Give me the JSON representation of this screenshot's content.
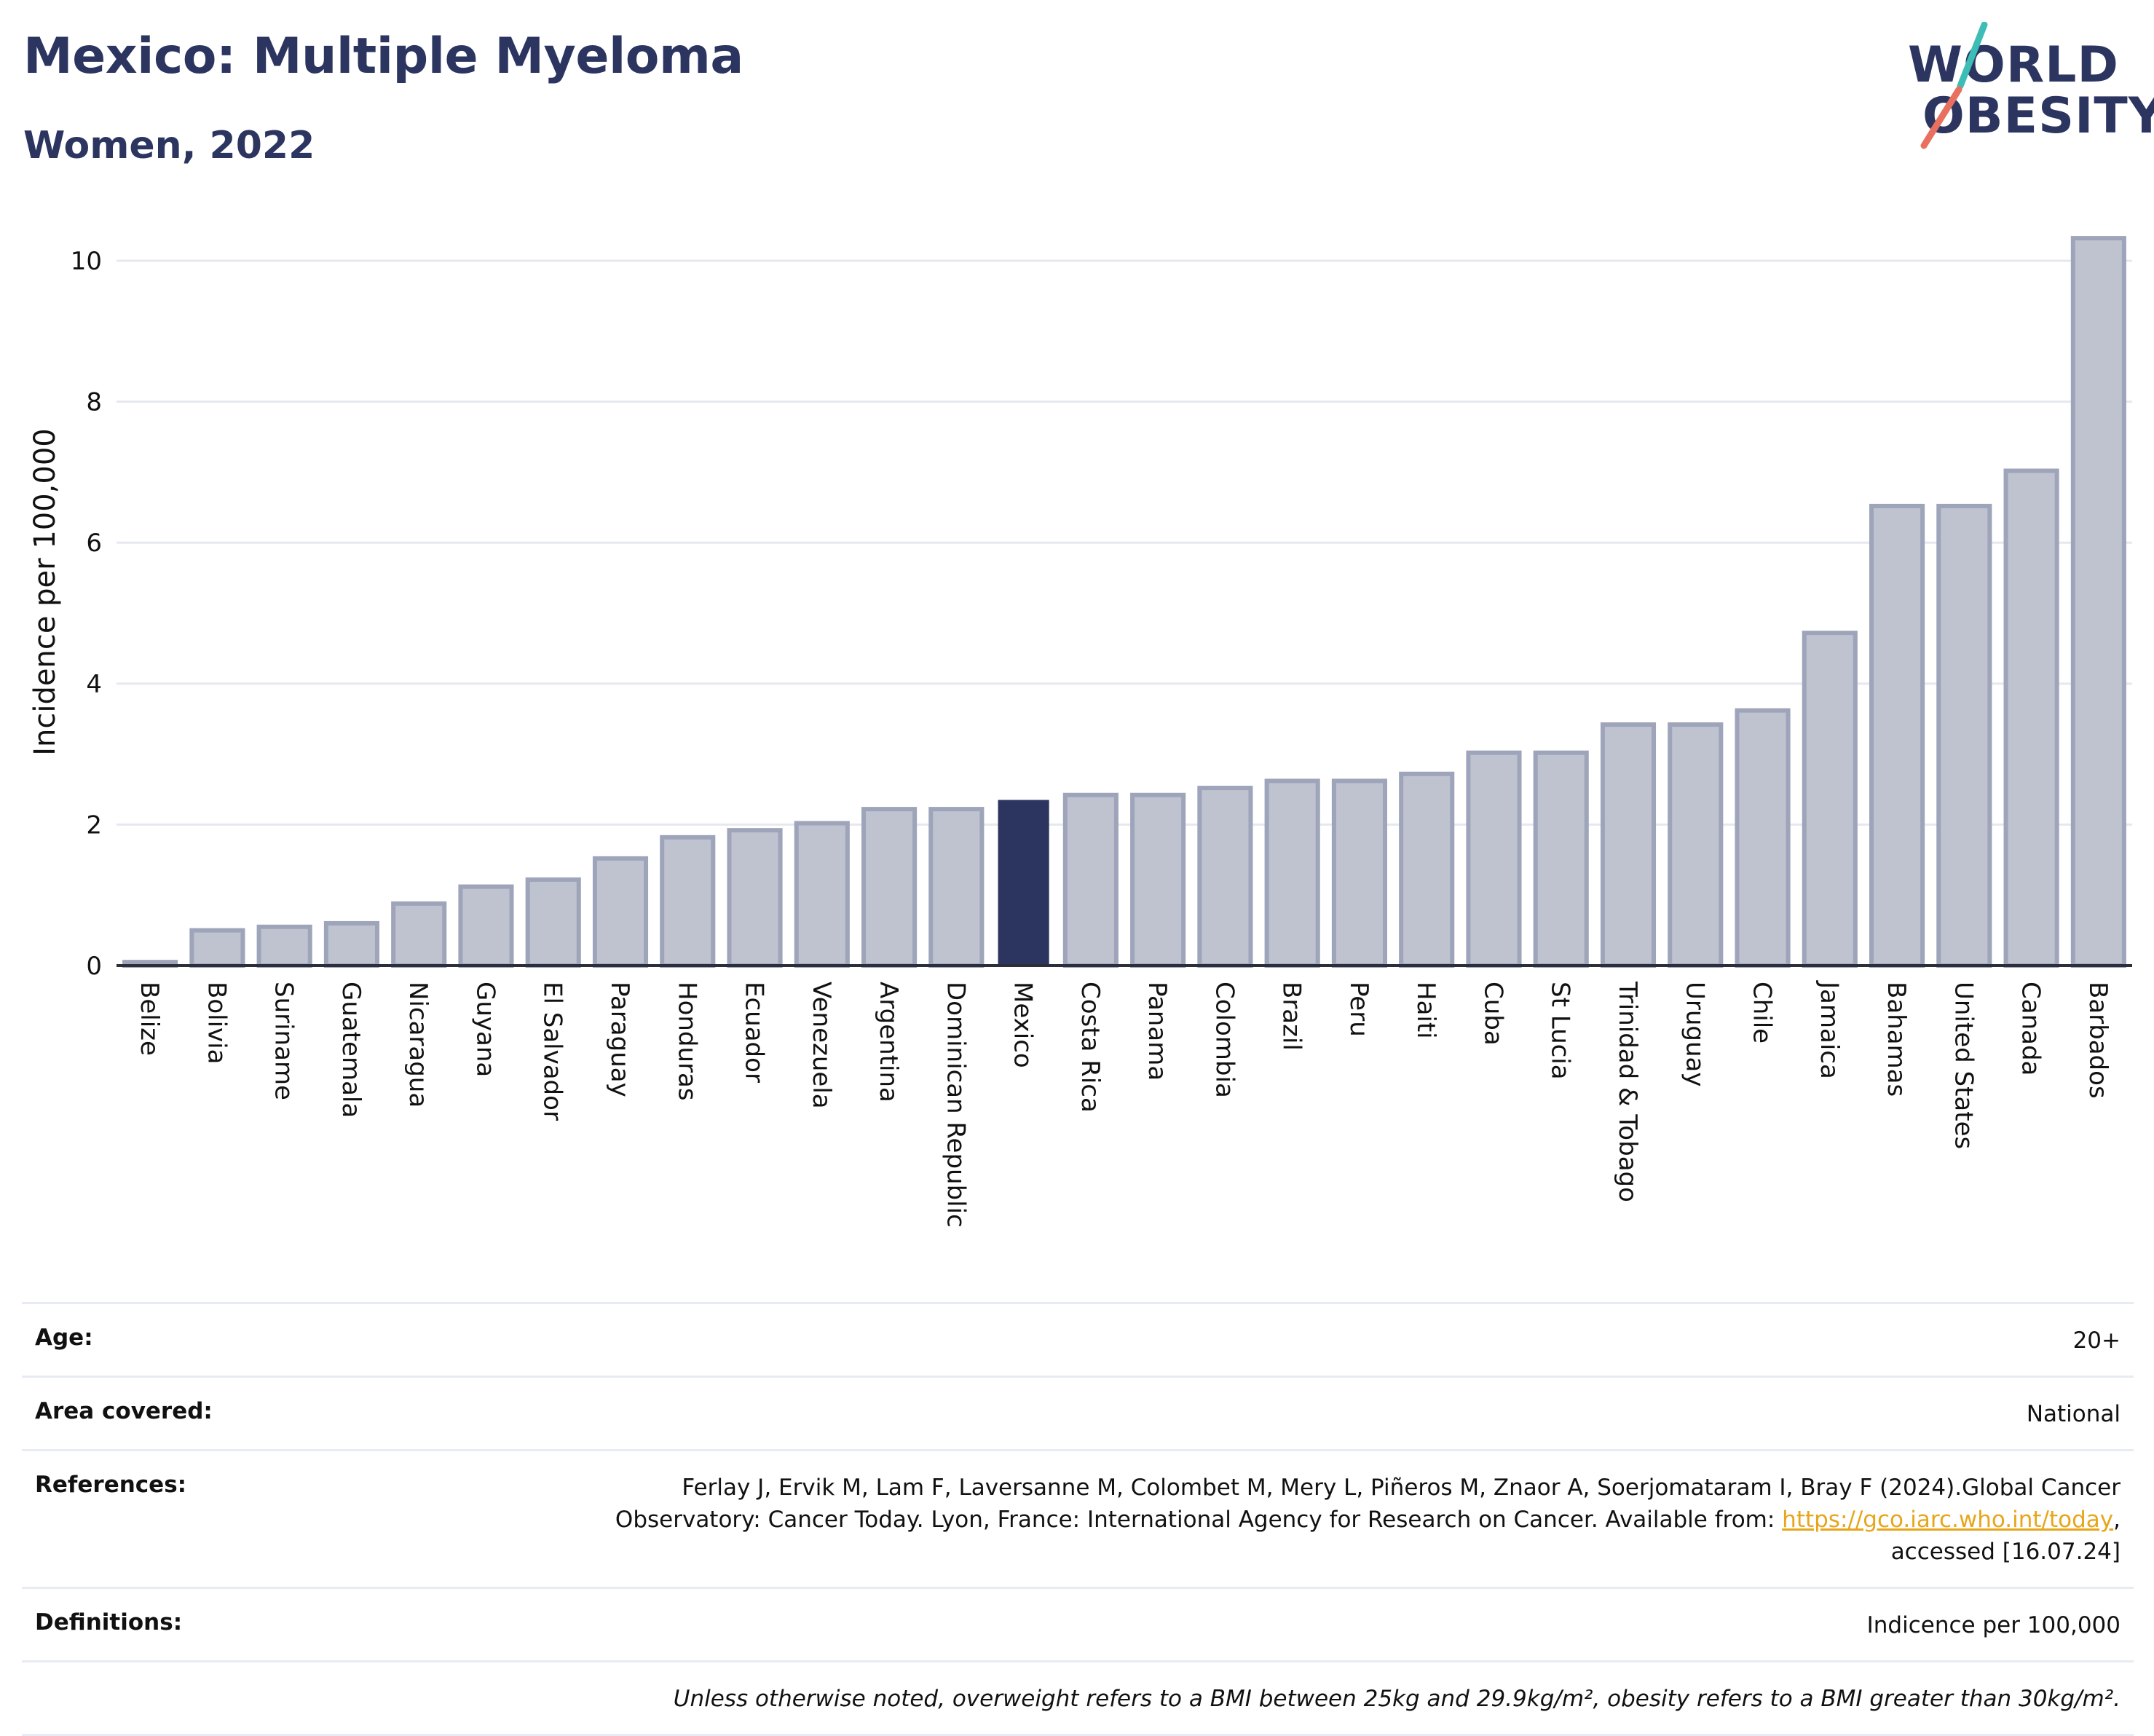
{
  "header": {
    "title": "Mexico: Multiple Myeloma",
    "subtitle": "Women, 2022",
    "logo_line1": "WORLD",
    "logo_line2": "OBESITY"
  },
  "colors": {
    "highlight": "#2b3560",
    "bar_fill": "#bfc3d0",
    "bar_stroke": "#9ea4b9",
    "logo_teal": "#3dbdb5",
    "logo_coral": "#e7705f"
  },
  "chart_data": {
    "type": "bar",
    "ylabel": "Incidence per 100,000",
    "xlabel": "",
    "ylim": [
      0,
      10.6
    ],
    "yticks": [
      0,
      2,
      4,
      6,
      8,
      10
    ],
    "grid": true,
    "highlight": "Mexico",
    "categories": [
      "Belize",
      "Bolivia",
      "Suriname",
      "Guatemala",
      "Nicaragua",
      "Guyana",
      "El Salvador",
      "Paraguay",
      "Honduras",
      "Ecuador",
      "Venezuela",
      "Argentina",
      "Dominican Republic",
      "Mexico",
      "Costa Rica",
      "Panama",
      "Colombia",
      "Brazil",
      "Peru",
      "Haiti",
      "Cuba",
      "St Lucia",
      "Trinidad & Tobago",
      "Uruguay",
      "Chile",
      "Jamaica",
      "Bahamas",
      "United States",
      "Canada",
      "Barbados"
    ],
    "values": [
      0.05,
      0.5,
      0.55,
      0.6,
      0.88,
      1.12,
      1.22,
      1.52,
      1.82,
      1.92,
      2.02,
      2.22,
      2.22,
      2.35,
      2.42,
      2.42,
      2.52,
      2.62,
      2.62,
      2.72,
      3.02,
      3.02,
      3.42,
      3.42,
      3.62,
      4.72,
      6.52,
      6.52,
      7.02,
      10.32
    ]
  },
  "meta": {
    "age_label": "Age:",
    "age_value": "20+",
    "area_label": "Area covered:",
    "area_value": "National",
    "references_label": "References:",
    "references_line1": "Ferlay J, Ervik M, Lam F, Laversanne M, Colombet M, Mery L, Piñeros M, Znaor A, Soerjomataram I, Bray F (2024).Global Cancer",
    "references_line2": "Observatory: Cancer Today. Lyon, France: International Agency for Research on Cancer. Available from:",
    "references_link": "https://gco.iarc.who.int/today",
    "references_line2_end": ",",
    "references_line3": "accessed [16.07.24]",
    "definitions_label": "Definitions:",
    "definitions_value": "Indicence per 100,000",
    "note": "Unless otherwise noted, overweight refers to a BMI between 25kg and 29.9kg/m², obesity refers to a BMI greater than 30kg/m²."
  }
}
